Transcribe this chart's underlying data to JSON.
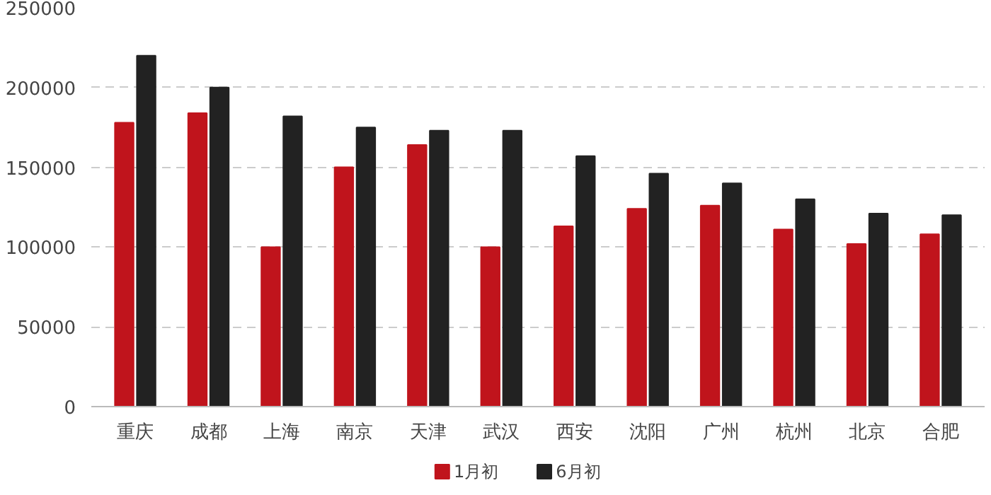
{
  "chart_data": {
    "type": "bar",
    "categories": [
      "重庆",
      "成都",
      "上海",
      "南京",
      "天津",
      "武汉",
      "西安",
      "沈阳",
      "广州",
      "杭州",
      "北京",
      "合肥"
    ],
    "series": [
      {
        "name": "1月初",
        "color": "#c0141c",
        "values": [
          178000,
          184000,
          100000,
          150000,
          164000,
          100000,
          113000,
          124000,
          126000,
          111000,
          102000,
          108000
        ]
      },
      {
        "name": "6月初",
        "color": "#222222",
        "values": [
          220000,
          200000,
          182000,
          175000,
          173000,
          173000,
          157000,
          146000,
          140000,
          130000,
          121000,
          120000
        ]
      }
    ],
    "ylim": [
      0,
      250000
    ],
    "yticks": [
      0,
      50000,
      100000,
      150000,
      200000,
      250000
    ],
    "grid": "y",
    "legend": "bottom"
  }
}
